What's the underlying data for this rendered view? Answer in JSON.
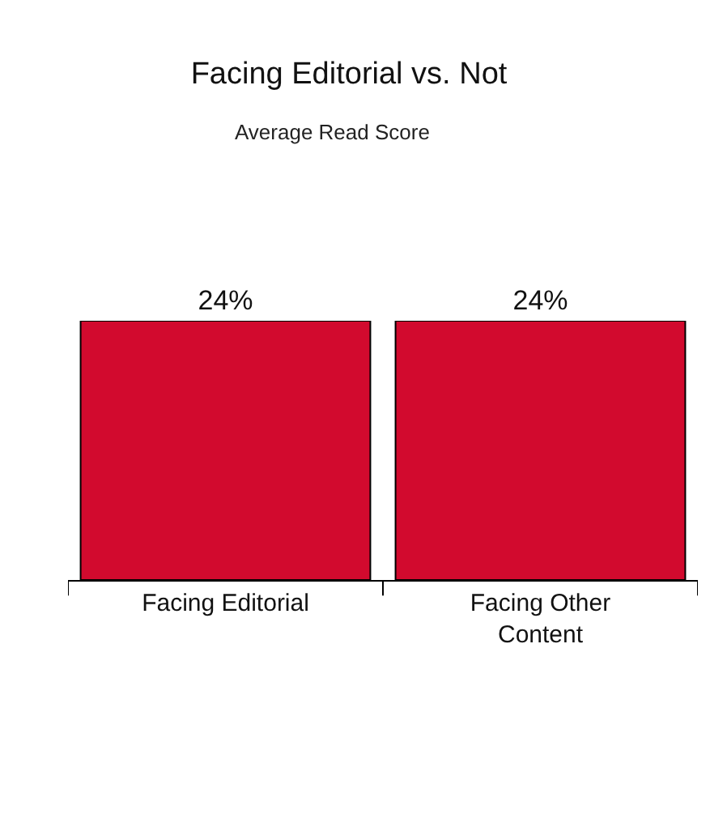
{
  "chart_data": {
    "type": "bar",
    "title": "Facing Editorial vs. Not",
    "subtitle": "Average Read Score",
    "categories": [
      "Facing Editorial",
      "Facing Other Content"
    ],
    "values": [
      24,
      24
    ],
    "value_labels": [
      "24%",
      "24%"
    ],
    "color": "#d20a2e"
  }
}
